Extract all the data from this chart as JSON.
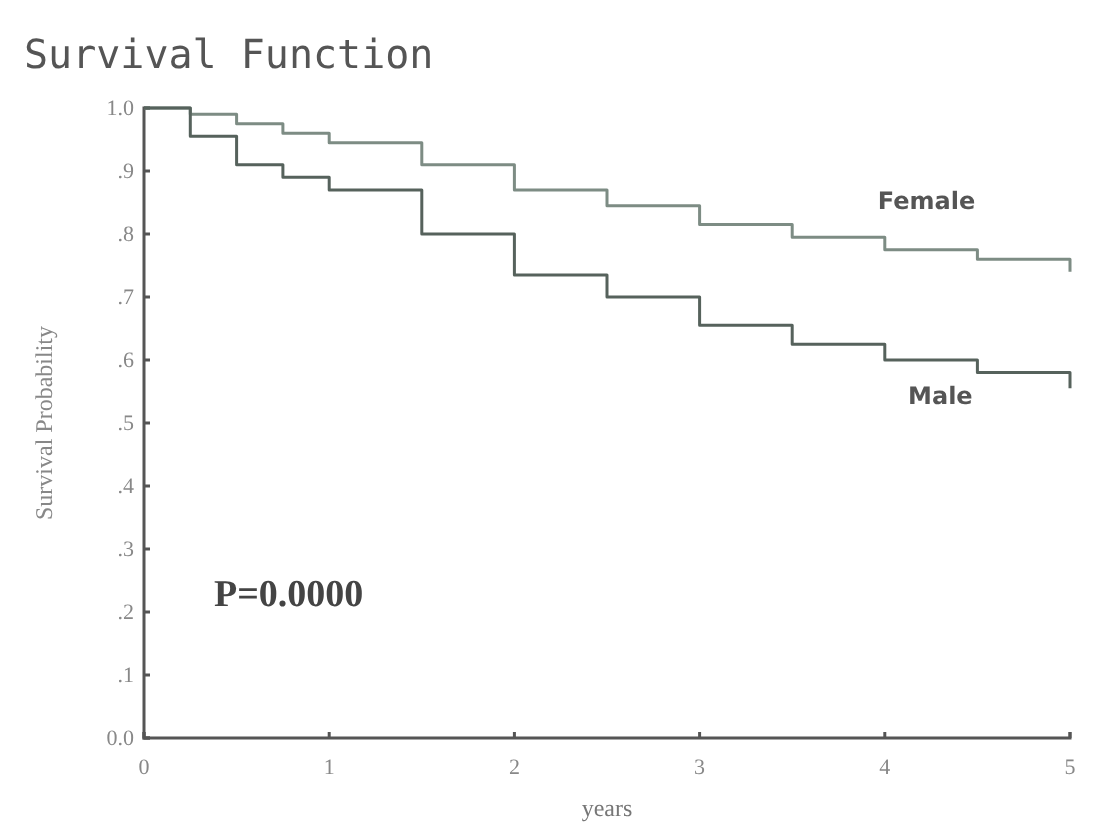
{
  "chart_data": {
    "type": "step",
    "title": "Survival Function",
    "xlabel": "years",
    "ylabel": "Survival Probability",
    "xlim": [
      0,
      5
    ],
    "xticks": [
      0,
      1,
      2,
      3,
      4,
      5
    ],
    "ylim": [
      0,
      1
    ],
    "yticks": [
      {
        "value": 0,
        "label": "0.0"
      },
      {
        "value": 0.1,
        "label": ".1"
      },
      {
        "value": 0.2,
        "label": ".2"
      },
      {
        "value": 0.3,
        "label": ".3"
      },
      {
        "value": 0.4,
        "label": ".4"
      },
      {
        "value": 0.5,
        "label": ".5"
      },
      {
        "value": 0.6,
        "label": ".6"
      },
      {
        "value": 0.7,
        "label": ".7"
      },
      {
        "value": 0.8,
        "label": ".8"
      },
      {
        "value": 0.9,
        "label": ".9"
      },
      {
        "value": 1,
        "label": "1.0"
      }
    ],
    "grid": false,
    "legend": false,
    "marker": "none",
    "line_style": "solid",
    "x": [
      0,
      0.25,
      0.5,
      0.75,
      1,
      1.5,
      2,
      2.5,
      3,
      3.5,
      4,
      4.5,
      5
    ],
    "series": [
      {
        "name": "Female",
        "color": "#7d8c84",
        "values": [
          1,
          0.99,
          0.975,
          0.96,
          0.945,
          0.91,
          0.87,
          0.845,
          0.815,
          0.795,
          0.775,
          0.76,
          0.74
        ]
      },
      {
        "name": "Male",
        "color": "#56625c",
        "values": [
          1,
          0.955,
          0.91,
          0.89,
          0.87,
          0.8,
          0.735,
          0.7,
          0.655,
          0.625,
          0.6,
          0.58,
          0.555
        ]
      }
    ],
    "annotations": [
      "P=0.0000"
    ]
  }
}
